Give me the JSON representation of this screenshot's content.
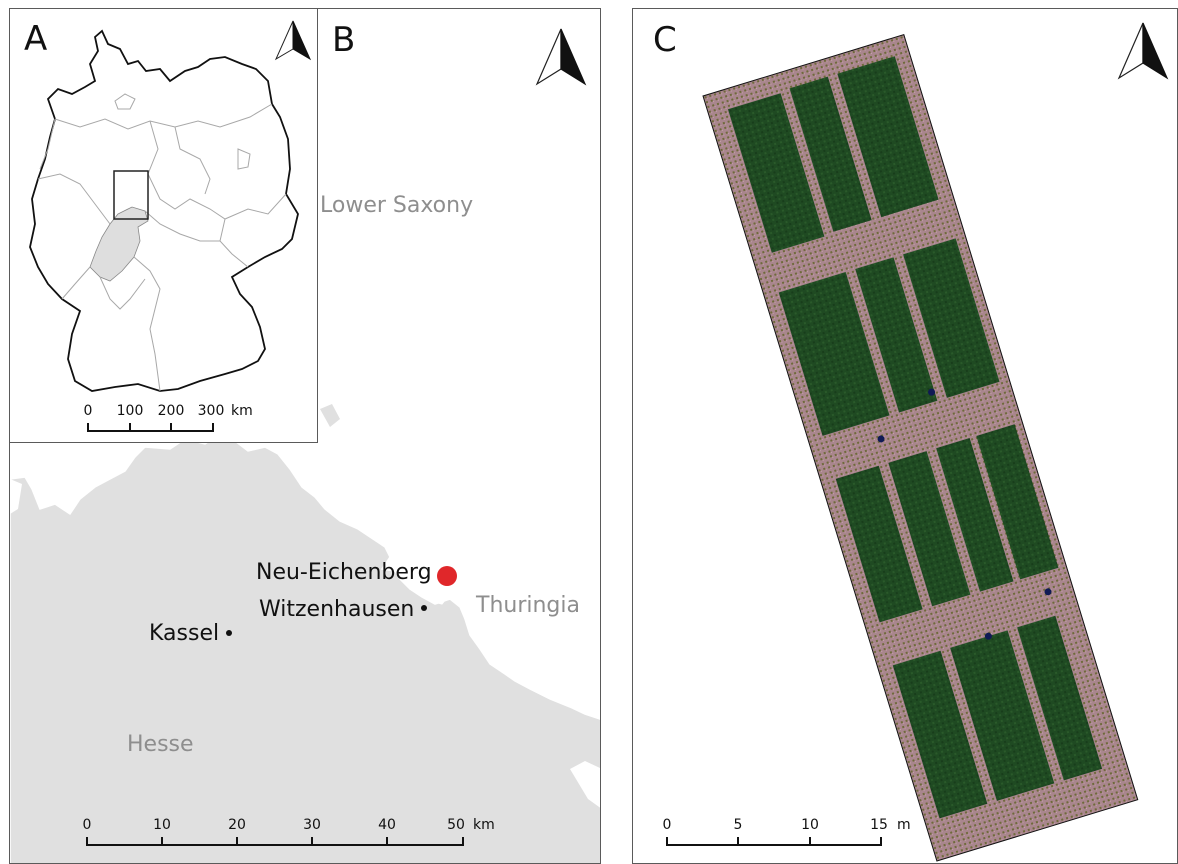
{
  "panels": {
    "a": {
      "label": "A",
      "scalebar": {
        "ticks": [
          "0",
          "100",
          "200",
          "300"
        ],
        "unit": "km"
      }
    },
    "b": {
      "label": "B",
      "regions": {
        "lower_saxony": "Lower Saxony",
        "thuringia": "Thuringia",
        "hesse": "Hesse"
      },
      "places": {
        "neu_eichenberg": "Neu-Eichenberg",
        "witzenhausen": "Witzenhausen",
        "kassel": "Kassel"
      },
      "scalebar": {
        "ticks": [
          "0",
          "10",
          "20",
          "30",
          "40",
          "50"
        ],
        "unit": "km"
      }
    },
    "c": {
      "label": "C",
      "scalebar": {
        "ticks": [
          "0",
          "5",
          "10",
          "15"
        ],
        "unit": "m"
      }
    }
  },
  "colors": {
    "hesse_fill": "#e0e0e0",
    "site_marker": "#e0272a",
    "vegetation": "#1f4a22",
    "bare_soil": "#b08a92"
  },
  "icons": [
    "north-arrow-icon"
  ]
}
